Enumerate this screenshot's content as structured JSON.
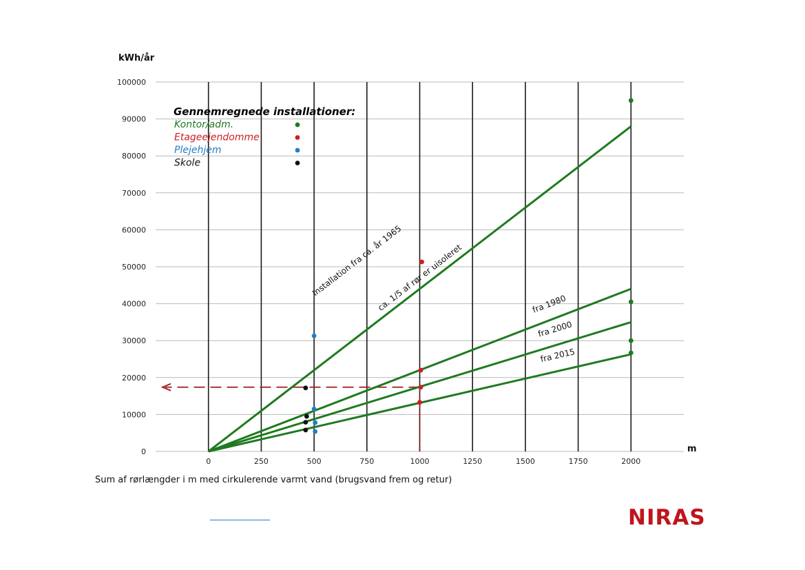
{
  "chart_data": {
    "type": "line",
    "title": "",
    "xlabel": "Sum af rørlængder i m med cirkulerende varmt vand (brugsvand frem og retur)",
    "ylabel": "kWh/år",
    "x_unit": "m",
    "xlim": [
      -250,
      2250
    ],
    "ylim": [
      0,
      100000
    ],
    "x_ticks": [
      "0",
      "250",
      "500",
      "750",
      "1000",
      "1250",
      "1500",
      "1750",
      "2000"
    ],
    "y_ticks": [
      "0",
      "10000",
      "20000",
      "30000",
      "40000",
      "50000",
      "60000",
      "70000",
      "80000",
      "90000",
      "100000"
    ],
    "grid": true,
    "line_color": "#1f7a1f",
    "series": [
      {
        "name": "Installation fra ca. år 1965",
        "x": [
          0,
          2000
        ],
        "y": [
          0,
          88000
        ],
        "label2": "ca. 1/5 af rør er uisoleret"
      },
      {
        "name": "fra 1980",
        "x": [
          0,
          2000
        ],
        "y": [
          0,
          44000
        ]
      },
      {
        "name": "fra 2000",
        "x": [
          0,
          2000
        ],
        "y": [
          0,
          35000
        ]
      },
      {
        "name": "fra 2015",
        "x": [
          0,
          2000
        ],
        "y": [
          0,
          26300
        ]
      }
    ],
    "points": [
      {
        "group": "Kontor/adm.",
        "x": 2000,
        "y": 95000
      },
      {
        "group": "Kontor/adm.",
        "x": 2000,
        "y": 40500
      },
      {
        "group": "Kontor/adm.",
        "x": 2000,
        "y": 30000
      },
      {
        "group": "Kontor/adm.",
        "x": 2000,
        "y": 26700
      },
      {
        "group": "Etageejendomme",
        "x": 1010,
        "y": 51300
      },
      {
        "group": "Etageejendomme",
        "x": 1005,
        "y": 22000
      },
      {
        "group": "Etageejendomme",
        "x": 1005,
        "y": 17400
      },
      {
        "group": "Etageejendomme",
        "x": 1000,
        "y": 13300
      },
      {
        "group": "Plejehjem",
        "x": 500,
        "y": 31300
      },
      {
        "group": "Plejehjem",
        "x": 500,
        "y": 11500
      },
      {
        "group": "Plejehjem",
        "x": 505,
        "y": 7800
      },
      {
        "group": "Plejehjem",
        "x": 505,
        "y": 5400
      },
      {
        "group": "Skole",
        "x": 460,
        "y": 17200
      },
      {
        "group": "Skole",
        "x": 465,
        "y": 9500
      },
      {
        "group": "Skole",
        "x": 460,
        "y": 7900
      },
      {
        "group": "Skole",
        "x": 460,
        "y": 5800
      }
    ],
    "reference_line": {
      "x": 1000,
      "y": 17400,
      "color": "#a31a1a"
    },
    "legend": {
      "title": "Gennemregnede installationer:",
      "placement": "top-left",
      "items": [
        {
          "label": "Kontor/adm.",
          "text_color": "#1f7a1f",
          "marker_color": "#1f7a1f"
        },
        {
          "label": "Etageejendomme",
          "text_color": "#cc1f1f",
          "marker_color": "#cc1f1f"
        },
        {
          "label": "Plejehjem",
          "text_color": "#1f7ec8",
          "marker_color": "#1f7ec8"
        },
        {
          "label": "Skole",
          "text_color": "#111111",
          "marker_color": "#111111"
        }
      ]
    }
  },
  "footer": {
    "logo_text": "NIRAS",
    "logo_color": "#c0141c"
  }
}
